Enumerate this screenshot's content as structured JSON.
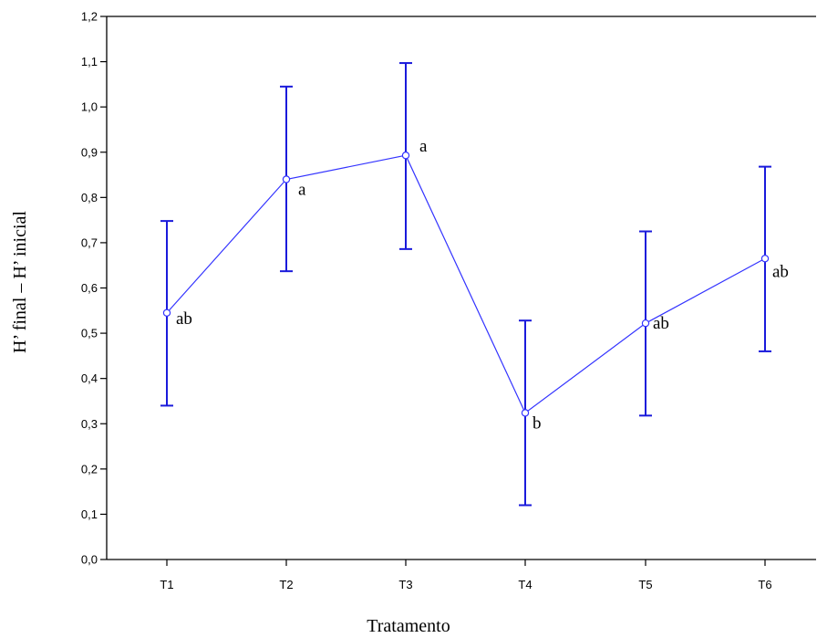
{
  "chart_data": {
    "type": "line",
    "xlabel": "Tratamento",
    "ylabel": "H’ final – H’ inicial",
    "categories": [
      "T1",
      "T2",
      "T3",
      "T4",
      "T5",
      "T6"
    ],
    "ylim": [
      0.0,
      1.2
    ],
    "yticks": [
      "0,0",
      "0,1",
      "0,2",
      "0,3",
      "0,4",
      "0,5",
      "0,6",
      "0,7",
      "0,8",
      "0,9",
      "1,0",
      "1,1",
      "1,2"
    ],
    "series": [
      {
        "values": [
          0.545,
          0.84,
          0.893,
          0.324,
          0.522,
          0.665
        ],
        "error_upper": [
          0.748,
          1.045,
          1.097,
          0.528,
          0.725,
          0.868
        ],
        "error_lower": [
          0.34,
          0.637,
          0.686,
          0.12,
          0.318,
          0.46
        ],
        "annotations": [
          "ab",
          "a",
          "a",
          "b",
          "ab",
          "ab"
        ]
      }
    ],
    "grid": false,
    "colors": {
      "series": "#3333ff",
      "errorbar": "#1a1adb",
      "axis": "#000000"
    }
  }
}
